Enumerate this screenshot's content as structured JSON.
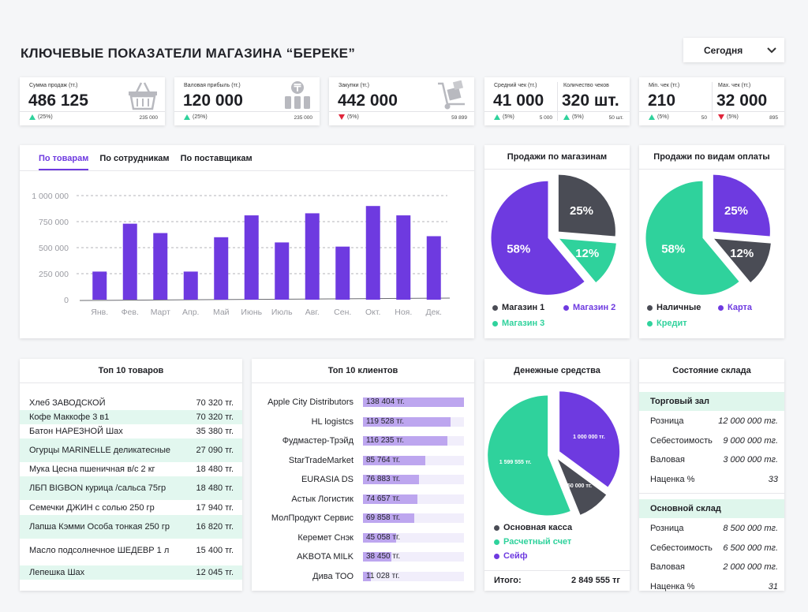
{
  "header": {
    "title": "КЛЮЧЕВЫЕ ПОКАЗАТЕЛИ МАГАЗИНА “БЕРЕКЕ”",
    "period": "Сегодня"
  },
  "colors": {
    "purple": "#6e3ae0",
    "green": "#2fd29c",
    "dark": "#4a4c55",
    "light_purple": "#bda6ef",
    "red": "#e0253b"
  },
  "kpi": {
    "sales": {
      "label": "Сумма продаж (тг.)",
      "value": "486 125",
      "pct": "(25%)",
      "ref": "235 000",
      "trend": "up",
      "icon": "basket-icon"
    },
    "profit": {
      "label": "Валовая прибыль (тг.)",
      "value": "120 000",
      "pct": "(25%)",
      "ref": "235 000",
      "trend": "up",
      "icon": "tenge-coins-icon"
    },
    "purchases": {
      "label": "Закупки (тг.)",
      "value": "442 000",
      "pct": "(5%)",
      "ref": "59 899",
      "trend": "down",
      "icon": "hand-truck-icon"
    },
    "avg_check": {
      "label": "Средний чек (тг.)",
      "value": "41 000",
      "pct": "(5%)",
      "ref": "5 000",
      "trend": "up"
    },
    "check_count": {
      "label": "Количество чеков",
      "value": "320 шт.",
      "pct": "(5%)",
      "ref": "50 шт.",
      "trend": "up"
    },
    "min_check": {
      "label": "Min. чек (тг.)",
      "value": "210",
      "pct": "(5%)",
      "ref": "50",
      "trend": "up"
    },
    "max_check": {
      "label": "Max. чек (тг.)",
      "value": "32 000",
      "pct": "(5%)",
      "ref": "895",
      "trend": "down"
    }
  },
  "tabs": [
    "По товарам",
    "По сотрудникам",
    "По поставщикам"
  ],
  "chart_data": [
    {
      "type": "bar",
      "categories": [
        "Янв.",
        "Фев.",
        "Март",
        "Апр.",
        "Май",
        "Июнь",
        "Июль",
        "Авг.",
        "Сен.",
        "Окт.",
        "Ноя.",
        "Дек."
      ],
      "values": [
        270000,
        730000,
        640000,
        270000,
        600000,
        810000,
        550000,
        830000,
        510000,
        900000,
        810000,
        610000
      ],
      "ylim": [
        0,
        1000000
      ],
      "yticks": [
        0,
        250000,
        500000,
        750000,
        1000000
      ],
      "ytick_labels": [
        "0",
        "250 000",
        "500 000",
        "750 000",
        "1 000 000"
      ],
      "grid": true
    },
    {
      "type": "pie",
      "title": "Продажи по магазинам",
      "labels": [
        "Магазин 1",
        "Магазин 2",
        "Магазин 3"
      ],
      "values": [
        25,
        58,
        12
      ],
      "value_labels": [
        "25%",
        "58%",
        "12%"
      ],
      "colors": [
        "#4a4c55",
        "#6e3ae0",
        "#2fd29c"
      ]
    },
    {
      "type": "pie",
      "title": "Продажи по видам оплаты",
      "labels": [
        "Наличные",
        "Карта",
        "Кредит"
      ],
      "values": [
        12,
        25,
        58
      ],
      "value_labels": [
        "12%",
        "25%",
        "58%"
      ],
      "colors": [
        "#4a4c55",
        "#6e3ae0",
        "#2fd29c"
      ]
    },
    {
      "type": "pie",
      "title": "Денежные средства",
      "labels": [
        "Основная касса",
        "Расчетный счет",
        "Сейф"
      ],
      "values": [
        250000,
        1599555,
        1000000
      ],
      "value_labels": [
        "250 000 тг.",
        "1 599 555 тг.",
        "1 000 000 тг."
      ],
      "colors": [
        "#4a4c55",
        "#2fd29c",
        "#6e3ae0"
      ]
    }
  ],
  "cash": {
    "total_label": "Итого:",
    "total_value": "2 849 555 тг"
  },
  "top_products": {
    "title": "Топ 10 товаров",
    "rows": [
      {
        "name": "Хлеб ЗАВОДСКОЙ",
        "amount": "70 320 тг."
      },
      {
        "name": "Кофе Маккофе 3 в1",
        "amount": "70 320 тг."
      },
      {
        "name": "Батон НАРЕЗНОЙ Шах",
        "amount": "35 380 тг."
      },
      {
        "name": "Огурцы MARINELLE деликатесные",
        "amount": "27 090 тг."
      },
      {
        "name": "Мука Цесна пшеничная в/с  2 кг",
        "amount": "18 480 тг."
      },
      {
        "name": "ЛБП BIGBON курица /сальса 75гр",
        "amount": "18 480 тг."
      },
      {
        "name": "Семечки ДЖИН с солью 250 гр",
        "amount": "17 940 тг."
      },
      {
        "name": "Лапша Кэмми Особа тонкая 250 гр",
        "amount": "16 820 тг."
      },
      {
        "name": "Масло подсолнечное ШЕДЕВР 1 л",
        "amount": "15 400 тг."
      },
      {
        "name": "Лепешка Шах",
        "amount": "12 045 тг."
      }
    ]
  },
  "top_clients": {
    "title": "Топ 10 клиентов",
    "rows": [
      {
        "name": "Apple City Distributors",
        "value_text": "138 404 тг.",
        "value": 138404
      },
      {
        "name": "HL logistcs",
        "value_text": "119 528 тг.",
        "value": 119528
      },
      {
        "name": "Фудмастер-Трэйд",
        "value_text": "116 235 тг.",
        "value": 116235
      },
      {
        "name": "StarTradeMarket",
        "value_text": "85 764 тг.",
        "value": 85764
      },
      {
        "name": "EURASIA DS",
        "value_text": "76 883 тг.",
        "value": 76883
      },
      {
        "name": "Астык Логистик",
        "value_text": "74 657 тг.",
        "value": 74657
      },
      {
        "name": "МолПродукт Сервис",
        "value_text": "69 858 тг.",
        "value": 69858
      },
      {
        "name": "Керемет Снэк",
        "value_text": "45 058 тг.",
        "value": 45058
      },
      {
        "name": "AKBOTA MILK",
        "value_text": "38 450 тг.",
        "value": 38450
      },
      {
        "name": "Дива ТОО",
        "value_text": "11 028 тг.",
        "value": 11028
      }
    ],
    "max": 138404
  },
  "warehouse": {
    "title": "Состояние склада",
    "sections": [
      {
        "name": "Торговый зал",
        "rows": [
          {
            "label": "Розница",
            "value": "12 000 000 тг."
          },
          {
            "label": "Себестоимость",
            "value": "9 000 000 тг."
          },
          {
            "label": "Валовая",
            "value": "3 000 000 тг."
          },
          {
            "label": "Наценка %",
            "value": "33"
          }
        ]
      },
      {
        "name": "Основной склад",
        "rows": [
          {
            "label": "Розница",
            "value": "8 500 000 тг."
          },
          {
            "label": "Себестоимость",
            "value": "6 500 000 тг."
          },
          {
            "label": "Валовая",
            "value": "2 000 000 тг."
          },
          {
            "label": "Наценка %",
            "value": "31"
          }
        ]
      }
    ]
  }
}
